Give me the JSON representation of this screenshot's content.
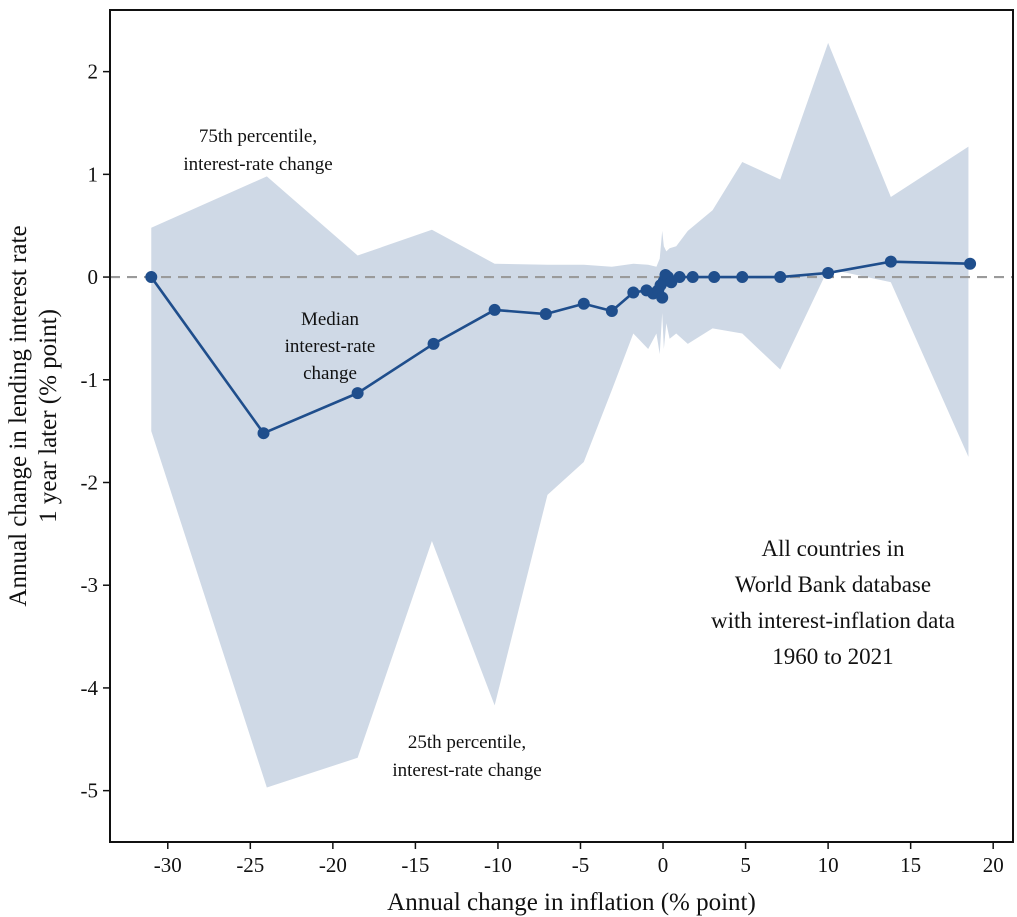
{
  "chart_data": {
    "type": "line",
    "xlabel": "Annual change in inflation (% point)",
    "ylabel_lines": [
      "Annual change in lending interest rate",
      "1 year later (% point)"
    ],
    "xlim": [
      -33.5,
      21.2
    ],
    "ylim": [
      -5.5,
      2.6
    ],
    "x_ticks": [
      -30,
      -25,
      -20,
      -15,
      -10,
      -5,
      0,
      5,
      10,
      15,
      20
    ],
    "x_tick_labels": [
      "-30",
      "-25",
      "-20",
      "-15",
      "-10",
      "-5",
      "0",
      "5",
      "10",
      "15",
      "20"
    ],
    "y_ticks": [
      2,
      1,
      0,
      -1,
      -2,
      -3,
      -4,
      -5
    ],
    "y_tick_labels": [
      "2",
      "1",
      "0",
      "-1",
      "-2",
      "-3",
      "-4",
      "-5"
    ],
    "zero_line": {
      "y": 0,
      "style": "dashed"
    },
    "band_upper": {
      "label_lines": [
        "75th percentile,",
        "interest-rate change"
      ],
      "x": [
        -31,
        -24,
        -18.5,
        -14,
        -10.2,
        -7,
        -4.8,
        -3.1,
        -1.8,
        -0.9,
        -0.4,
        -0.2,
        -0.05,
        0.05,
        0.2,
        0.4,
        0.8,
        1.5,
        3,
        4.8,
        7.1,
        10,
        13.8,
        18.5
      ],
      "y": [
        0.48,
        0.98,
        0.21,
        0.46,
        0.13,
        0.12,
        0.12,
        0.1,
        0.13,
        0.12,
        0.1,
        0.18,
        0.45,
        0.3,
        0.25,
        0.28,
        0.3,
        0.45,
        0.65,
        1.12,
        0.95,
        2.28,
        0.78,
        1.27
      ]
    },
    "band_lower": {
      "label_lines": [
        "25th percentile,",
        "interest-rate change"
      ],
      "x": [
        -31,
        -24,
        -18.5,
        -14,
        -10.2,
        -7,
        -4.8,
        -3.1,
        -1.8,
        -0.9,
        -0.4,
        -0.2,
        -0.05,
        0.05,
        0.2,
        0.4,
        0.8,
        1.5,
        3,
        4.8,
        7.1,
        10,
        13.8,
        18.5
      ],
      "y": [
        -1.5,
        -4.97,
        -4.68,
        -2.57,
        -4.17,
        -2.12,
        -1.8,
        -1.1,
        -0.55,
        -0.7,
        -0.55,
        -0.75,
        -0.35,
        -0.7,
        -0.45,
        -0.6,
        -0.55,
        -0.65,
        -0.5,
        -0.55,
        -0.9,
        0.08,
        -0.05,
        -1.75
      ]
    },
    "series": [
      {
        "name": "Median interest-rate change",
        "label_lines": [
          "Median",
          "interest-rate",
          "change"
        ],
        "x": [
          -31,
          -24.2,
          -18.5,
          -13.9,
          -10.2,
          -7.1,
          -4.8,
          -3.1,
          -1.8,
          -1.0,
          -0.6,
          -0.3,
          -0.15,
          -0.05,
          0.05,
          0.15,
          0.3,
          0.5,
          1.0,
          1.8,
          3.1,
          4.8,
          7.1,
          10.0,
          13.8,
          18.6
        ],
        "y": [
          0.0,
          -1.52,
          -1.13,
          -0.65,
          -0.32,
          -0.36,
          -0.26,
          -0.33,
          -0.15,
          -0.13,
          -0.16,
          -0.13,
          -0.08,
          -0.2,
          -0.04,
          0.02,
          0.0,
          -0.05,
          0.0,
          0.0,
          0.0,
          0.0,
          0.0,
          0.04,
          0.15,
          0.13
        ]
      }
    ],
    "annotation_lines": [
      "All countries in",
      "World Bank database",
      "with interest-inflation data",
      "1960 to 2021"
    ],
    "grid": false,
    "colors": {
      "band": "#cfd9e6",
      "line": "#1f4e8c",
      "zero_line": "#9a9a9a",
      "axis": "#111111"
    }
  }
}
